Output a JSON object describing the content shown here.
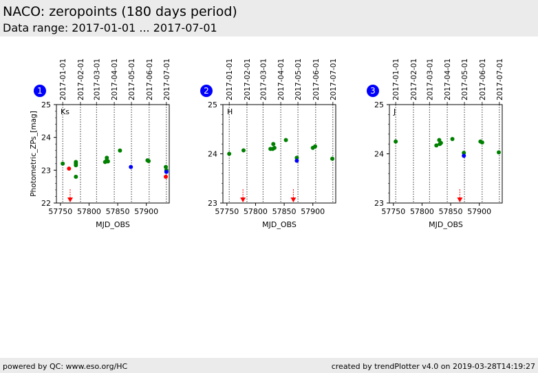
{
  "header": {
    "title": "NACO: zeropoints (180 days period)",
    "subtitle": "Data range: 2017-01-01 ... 2017-07-01"
  },
  "footer": {
    "left": "powered by QC: www.eso.org/HC",
    "right": "created by trendPlotter v4.0 on 2019-03-28T14:19:27"
  },
  "colors": {
    "ok": "#008000",
    "outlier": "#ff0000",
    "latest": "#0000ff",
    "badge": "#0000ff",
    "date_line": "#000000"
  },
  "chart_data": [
    {
      "type": "scatter",
      "panel_number": "1",
      "band_label": "Ks",
      "xlabel": "MJD_OBS",
      "ylabel": "Photometric_ZPs_[mag]",
      "xlim": [
        57743,
        57940
      ],
      "ylim": [
        22,
        25
      ],
      "x_ticks": [
        57750,
        57800,
        57850,
        57900
      ],
      "y_ticks": [
        22,
        23,
        24,
        25
      ],
      "date_lines": [
        {
          "mjd": 57754,
          "label": "2017-01-01"
        },
        {
          "mjd": 57785,
          "label": "2017-02-01"
        },
        {
          "mjd": 57813,
          "label": "2017-03-01"
        },
        {
          "mjd": 57844,
          "label": "2017-04-01"
        },
        {
          "mjd": 57874,
          "label": "2017-05-01"
        },
        {
          "mjd": 57905,
          "label": "2017-06-01"
        },
        {
          "mjd": 57935,
          "label": "2017-07-01"
        }
      ],
      "series": [
        {
          "status": "ok",
          "points": [
            [
              57754,
              23.2
            ],
            [
              57777,
              23.25
            ],
            [
              57777,
              23.2
            ],
            [
              57777,
              23.15
            ],
            [
              57777,
              22.8
            ],
            [
              57828,
              23.25
            ],
            [
              57831,
              23.3
            ],
            [
              57831,
              23.38
            ],
            [
              57833,
              23.27
            ],
            [
              57854,
              23.6
            ],
            [
              57902,
              23.3
            ],
            [
              57904,
              23.28
            ],
            [
              57934,
              23.1
            ],
            [
              57935,
              23.0
            ]
          ]
        },
        {
          "status": "outlier",
          "points": [
            [
              57765,
              23.05
            ],
            [
              57934,
              22.8
            ]
          ]
        },
        {
          "status": "latest",
          "points": [
            [
              57873,
              23.1
            ],
            [
              57935,
              22.95
            ]
          ]
        }
      ],
      "below_range_markers": [
        57767
      ]
    },
    {
      "type": "scatter",
      "panel_number": "2",
      "band_label": "H",
      "xlabel": "MJD_OBS",
      "ylabel": "",
      "xlim": [
        57743,
        57940
      ],
      "ylim": [
        23,
        25
      ],
      "x_ticks": [
        57750,
        57800,
        57850,
        57900
      ],
      "y_ticks": [
        23,
        24,
        25
      ],
      "date_lines": [
        {
          "mjd": 57754,
          "label": "2017-01-01"
        },
        {
          "mjd": 57785,
          "label": "2017-02-01"
        },
        {
          "mjd": 57813,
          "label": "2017-03-01"
        },
        {
          "mjd": 57844,
          "label": "2017-04-01"
        },
        {
          "mjd": 57874,
          "label": "2017-05-01"
        },
        {
          "mjd": 57905,
          "label": "2017-06-01"
        },
        {
          "mjd": 57935,
          "label": "2017-07-01"
        }
      ],
      "series": [
        {
          "status": "ok",
          "points": [
            [
              57754,
              24.0
            ],
            [
              57779,
              24.07
            ],
            [
              57826,
              24.1
            ],
            [
              57830,
              24.1
            ],
            [
              57831,
              24.2
            ],
            [
              57833,
              24.12
            ],
            [
              57853,
              24.28
            ],
            [
              57872,
              23.92
            ],
            [
              57900,
              24.12
            ],
            [
              57904,
              24.15
            ],
            [
              57934,
              23.9
            ]
          ]
        },
        {
          "status": "latest",
          "points": [
            [
              57872,
              23.86
            ]
          ]
        }
      ],
      "below_range_markers": [
        57778,
        57866
      ]
    },
    {
      "type": "scatter",
      "panel_number": "3",
      "band_label": "J",
      "xlabel": "MJD_OBS",
      "ylabel": "",
      "xlim": [
        57743,
        57940
      ],
      "ylim": [
        23,
        25
      ],
      "x_ticks": [
        57750,
        57800,
        57850,
        57900
      ],
      "y_ticks": [
        23,
        24,
        25
      ],
      "date_lines": [
        {
          "mjd": 57754,
          "label": "2017-01-01"
        },
        {
          "mjd": 57785,
          "label": "2017-02-01"
        },
        {
          "mjd": 57813,
          "label": "2017-03-01"
        },
        {
          "mjd": 57844,
          "label": "2017-04-01"
        },
        {
          "mjd": 57874,
          "label": "2017-05-01"
        },
        {
          "mjd": 57905,
          "label": "2017-06-01"
        },
        {
          "mjd": 57935,
          "label": "2017-07-01"
        }
      ],
      "series": [
        {
          "status": "ok",
          "points": [
            [
              57754,
              24.25
            ],
            [
              57825,
              24.17
            ],
            [
              57830,
              24.28
            ],
            [
              57831,
              24.2
            ],
            [
              57833,
              24.22
            ],
            [
              57853,
              24.3
            ],
            [
              57873,
              24.02
            ],
            [
              57902,
              24.25
            ],
            [
              57905,
              24.23
            ],
            [
              57934,
              24.03
            ]
          ]
        },
        {
          "status": "latest",
          "points": [
            [
              57873,
              23.96
            ]
          ]
        }
      ],
      "below_range_markers": [
        57866
      ]
    }
  ]
}
